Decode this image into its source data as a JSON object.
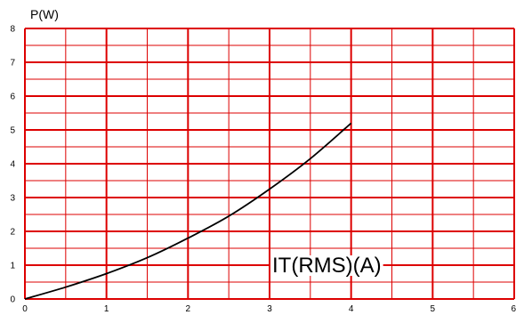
{
  "chart_data": {
    "type": "line",
    "title": "",
    "ylabel": "P(W)",
    "xlabel": "IT(RMS)(A)",
    "xlim": [
      0,
      6
    ],
    "ylim": [
      0,
      8
    ],
    "x_ticks": [
      "0",
      "1",
      "2",
      "3",
      "4",
      "5",
      "6"
    ],
    "y_ticks": [
      "0",
      "1",
      "2",
      "3",
      "4",
      "5",
      "6",
      "7",
      "8"
    ],
    "grid": true,
    "grid_color": "#dd0000",
    "line_color": "#000000",
    "series": [
      {
        "x": [
          0,
          0.5,
          1.0,
          1.5,
          2.0,
          2.5,
          3.0,
          3.5,
          4.0
        ],
        "y": [
          0,
          0.35,
          0.75,
          1.22,
          1.8,
          2.45,
          3.25,
          4.15,
          5.2
        ]
      }
    ]
  }
}
